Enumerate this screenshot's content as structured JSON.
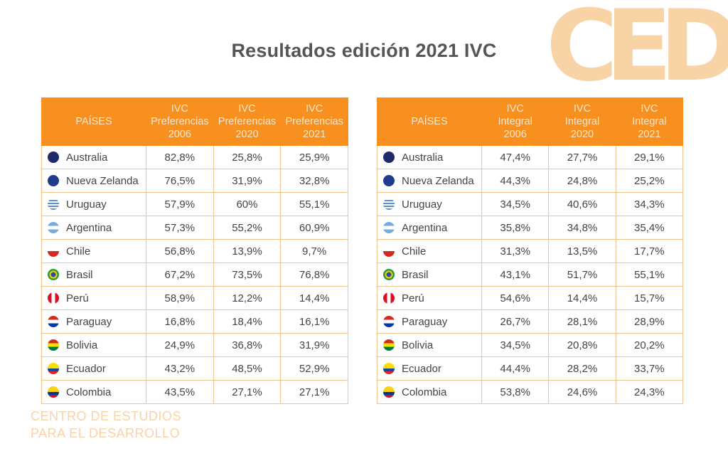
{
  "title": "Resultados edición 2021 IVC",
  "logo_text": "CED",
  "footer": [
    "CENTRO DE ESTUDIOS",
    "PARA EL DESARROLLO"
  ],
  "colors": {
    "header": "#f7901e",
    "logo": "#f8d3a6",
    "border": "#f4c48d"
  },
  "countries": [
    "Australia",
    "Nueva Zelanda",
    "Uruguay",
    "Argentina",
    "Chile",
    "Brasil",
    "Perú",
    "Paraguay",
    "Bolivia",
    "Ecuador",
    "Colombia"
  ],
  "flags": [
    "linear-gradient(#1f2a6b,#1f2a6b)",
    "linear-gradient(#1f3c8c,#1f3c8c)",
    "repeating-linear-gradient(#fff 0 2px,#5b8fd6 2px 4px)",
    "linear-gradient(#74acdf 33%,#fff 33% 66%,#74acdf 66%)",
    "linear-gradient(#fff 50%,#d52b1e 50%)",
    "radial-gradient(#2e4c9c 30%,#f5d000 31% 48%,#2a9a3a 49%)",
    "linear-gradient(90deg,#d91023 33%,#fff 33% 66%,#d91023 66%)",
    "linear-gradient(#d52b1e 33%,#fff 33% 66%,#0038a8 66%)",
    "linear-gradient(#d52b1e 33%,#f9e300 33% 66%,#007934 66%)",
    "linear-gradient(#ffdd00 50%,#034ea2 50% 75%,#ed1c24 75%)",
    "linear-gradient(#fcd116 50%,#003893 50% 75%,#ce1126 75%)"
  ],
  "left": {
    "header": {
      "country": "PAÍSES",
      "cols": [
        [
          "IVC",
          "Preferencias",
          "2006"
        ],
        [
          "IVC",
          "Preferencias",
          "2020"
        ],
        [
          "IVC",
          "Preferencias",
          "2021"
        ]
      ]
    },
    "rows": [
      [
        "82,8%",
        "25,8%",
        "25,9%"
      ],
      [
        "76,5%",
        "31,9%",
        "32,8%"
      ],
      [
        "57,9%",
        "60%",
        "55,1%"
      ],
      [
        "57,3%",
        "55,2%",
        "60,9%"
      ],
      [
        "56,8%",
        "13,9%",
        "9,7%"
      ],
      [
        "67,2%",
        "73,5%",
        "76,8%"
      ],
      [
        "58,9%",
        "12,2%",
        "14,4%"
      ],
      [
        "16,8%",
        "18,4%",
        "16,1%"
      ],
      [
        "24,9%",
        "36,8%",
        "31,9%"
      ],
      [
        "43,2%",
        "48,5%",
        "52,9%"
      ],
      [
        "43,5%",
        "27,1%",
        "27,1%"
      ]
    ]
  },
  "right": {
    "header": {
      "country": "PAÍSES",
      "cols": [
        [
          "IVC",
          "Integral",
          "2006"
        ],
        [
          "IVC",
          "Integral",
          "2020"
        ],
        [
          "IVC",
          "Integral",
          "2021"
        ]
      ]
    },
    "rows": [
      [
        "47,4%",
        "27,7%",
        "29,1%"
      ],
      [
        "44,3%",
        "24,8%",
        "25,2%"
      ],
      [
        "34,5%",
        "40,6%",
        "34,3%"
      ],
      [
        "35,8%",
        "34,8%",
        "35,4%"
      ],
      [
        "31,3%",
        "13,5%",
        "17,7%"
      ],
      [
        "43,1%",
        "51,7%",
        "55,1%"
      ],
      [
        "54,6%",
        "14,4%",
        "15,7%"
      ],
      [
        "26,7%",
        "28,1%",
        "28,9%"
      ],
      [
        "34,5%",
        "20,8%",
        "20,2%"
      ],
      [
        "44,4%",
        "28,2%",
        "33,7%"
      ],
      [
        "53,8%",
        "24,6%",
        "24,3%"
      ]
    ]
  }
}
